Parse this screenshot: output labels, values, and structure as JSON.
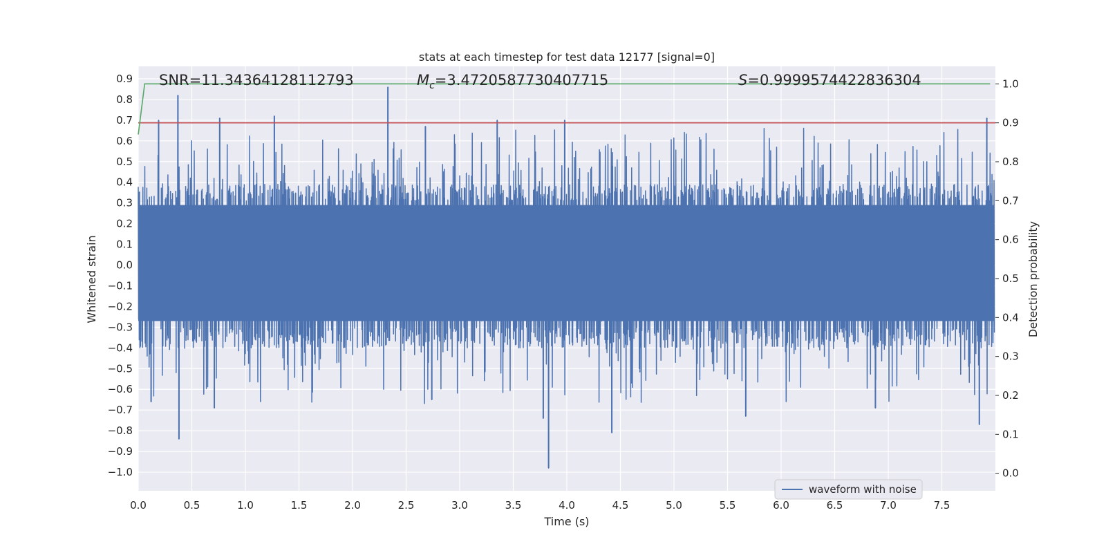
{
  "chart_data": {
    "type": "line",
    "title": "stats at each timestep for test data 12177 [signal=0]",
    "xlabel": "Time (s)",
    "ylabel": "Whitened strain",
    "y2label": "Detection probability",
    "xlim": [
      0.0,
      8.0
    ],
    "ylim": [
      -1.09,
      0.96
    ],
    "y2lim": [
      -0.045,
      1.045
    ],
    "xticks": [
      0.0,
      0.5,
      1.0,
      1.5,
      2.0,
      2.5,
      3.0,
      3.5,
      4.0,
      4.5,
      5.0,
      5.5,
      6.0,
      6.5,
      7.0,
      7.5
    ],
    "xtick_labels": [
      "0.0",
      "0.5",
      "1.0",
      "1.5",
      "2.0",
      "2.5",
      "3.0",
      "3.5",
      "4.0",
      "4.5",
      "5.0",
      "5.5",
      "6.0",
      "6.5",
      "7.0",
      "7.5"
    ],
    "yticks": [
      0.9,
      0.8,
      0.7,
      0.6,
      0.5,
      0.4,
      0.3,
      0.2,
      0.1,
      0.0,
      -0.1,
      -0.2,
      -0.3,
      -0.4,
      -0.5,
      -0.6,
      -0.7,
      -0.8,
      -0.9,
      -1.0
    ],
    "ytick_labels": [
      "0.9",
      "0.8",
      "0.7",
      "0.6",
      "0.5",
      "0.4",
      "0.3",
      "0.2",
      "0.1",
      "0.0",
      "−0.1",
      "−0.2",
      "−0.3",
      "−0.4",
      "−0.5",
      "−0.6",
      "−0.7",
      "−0.8",
      "−0.9",
      "−1.0"
    ],
    "y2ticks": [
      1.0,
      0.9,
      0.8,
      0.7,
      0.6,
      0.5,
      0.4,
      0.3,
      0.2,
      0.1,
      0.0
    ],
    "y2tick_labels": [
      "1.0",
      "0.9",
      "0.8",
      "0.7",
      "0.6",
      "0.5",
      "0.4",
      "0.3",
      "0.2",
      "0.1",
      "0.0"
    ],
    "grid": true,
    "legend_position": "bottom-right",
    "annotations": {
      "snr": "SNR=11.34364128112793",
      "mc_symbol": "M",
      "mc_subscript": "c",
      "mc_value": "=3.4720587730407715",
      "s_symbol": "S",
      "s_value": "=0.9999574422836304"
    },
    "series": [
      {
        "name": "waveform with noise",
        "axis": "left",
        "color": "#4c72b0",
        "description": "dense noise waveform, envelope approx ±0.3 with peaks; notable extrema",
        "t_start": 0.0,
        "t_end": 7.99,
        "band_min": -0.27,
        "band_max": 0.29,
        "peaks": [
          {
            "x": 0.19,
            "y": 0.7
          },
          {
            "x": 0.37,
            "y": 0.82
          },
          {
            "x": 0.76,
            "y": 0.71
          },
          {
            "x": 1.27,
            "y": 0.72
          },
          {
            "x": 2.33,
            "y": 0.86
          },
          {
            "x": 2.68,
            "y": 0.67
          },
          {
            "x": 3.35,
            "y": 0.7
          },
          {
            "x": 3.98,
            "y": 0.7
          },
          {
            "x": 7.92,
            "y": 0.71
          }
        ],
        "troughs": [
          {
            "x": 0.12,
            "y": -0.66
          },
          {
            "x": 0.38,
            "y": -0.84
          },
          {
            "x": 0.71,
            "y": -0.69
          },
          {
            "x": 2.74,
            "y": -0.65
          },
          {
            "x": 3.83,
            "y": -0.98
          },
          {
            "x": 3.78,
            "y": -0.74
          },
          {
            "x": 4.42,
            "y": -0.81
          },
          {
            "x": 5.67,
            "y": -0.73
          },
          {
            "x": 6.88,
            "y": -0.69
          },
          {
            "x": 7.85,
            "y": -0.77
          }
        ]
      },
      {
        "name": "detection probability",
        "axis": "right",
        "color": "#55a868",
        "x": [
          0.0,
          0.06,
          7.95
        ],
        "y": [
          0.87,
          1.0,
          1.0
        ]
      },
      {
        "name": "threshold",
        "axis": "right",
        "color": "#c44e52",
        "x": [
          0.0,
          8.0
        ],
        "y": [
          0.9,
          0.9
        ]
      }
    ],
    "colors": {
      "plot_background": "#eaeaf2",
      "grid": "#ffffff",
      "text": "#262626"
    }
  }
}
